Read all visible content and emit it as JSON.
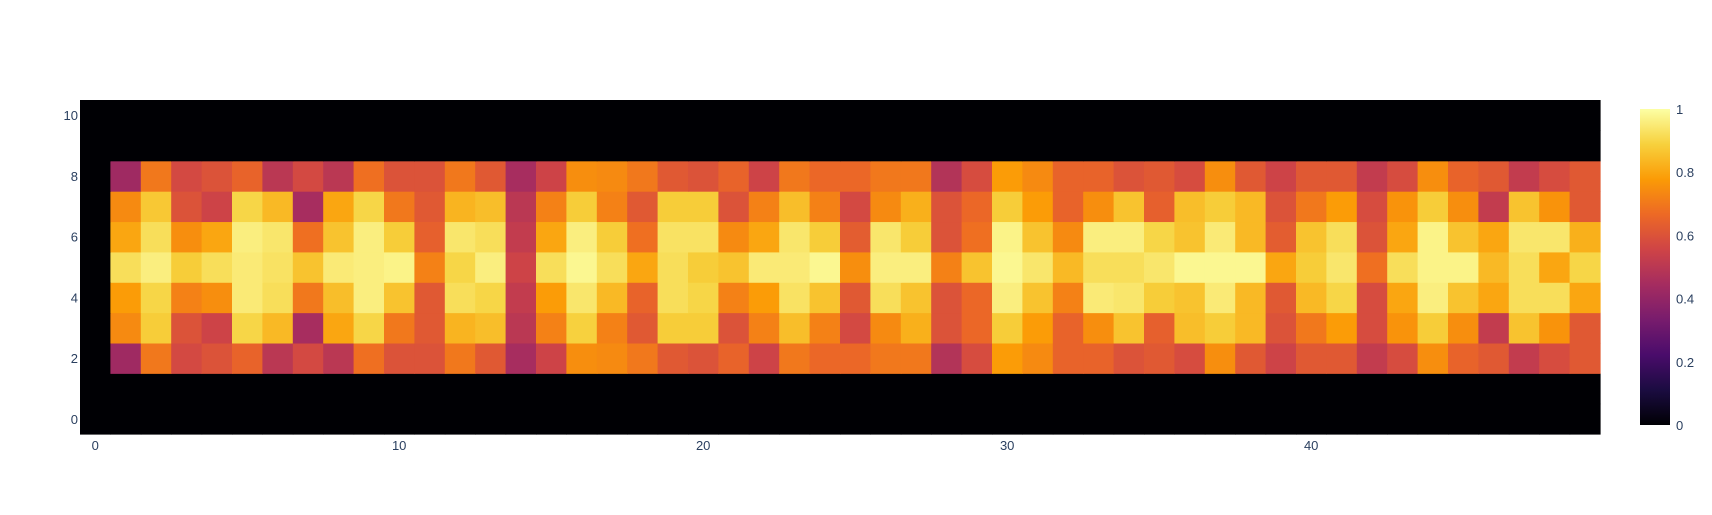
{
  "chart_data": {
    "type": "heatmap",
    "title": "",
    "xlabel": "",
    "ylabel": "",
    "colorscale": "inferno",
    "zmin": 0,
    "zmax": 1,
    "x_range": [
      -0.5,
      49.5
    ],
    "y_range": [
      -0.5,
      10.5
    ],
    "x_ticks": [
      0,
      10,
      20,
      30,
      40
    ],
    "y_ticks": [
      0,
      2,
      4,
      6,
      8,
      10
    ],
    "colorbar_ticks": [
      0,
      0.2,
      0.4,
      0.6,
      0.8,
      1
    ],
    "tick_labels": {
      "x": [
        "0",
        "10",
        "20",
        "30",
        "40"
      ],
      "y": [
        "0",
        "2",
        "4",
        "6",
        "8",
        "10"
      ],
      "colorbar": [
        "0",
        "0.2",
        "0.4",
        "0.6",
        "0.8",
        "1"
      ]
    },
    "z": [
      [
        0,
        0,
        0,
        0,
        0,
        0,
        0,
        0,
        0,
        0,
        0,
        0,
        0,
        0,
        0,
        0,
        0,
        0,
        0,
        0,
        0,
        0,
        0,
        0,
        0,
        0,
        0,
        0,
        0,
        0,
        0,
        0,
        0,
        0,
        0,
        0,
        0,
        0,
        0,
        0,
        0,
        0,
        0,
        0,
        0,
        0,
        0,
        0,
        0,
        0
      ],
      [
        0,
        0,
        0,
        0,
        0,
        0,
        0,
        0,
        0,
        0,
        0,
        0,
        0,
        0,
        0,
        0,
        0,
        0,
        0,
        0,
        0,
        0,
        0,
        0,
        0,
        0,
        0,
        0,
        0,
        0,
        0,
        0,
        0,
        0,
        0,
        0,
        0,
        0,
        0,
        0,
        0,
        0,
        0,
        0,
        0,
        0,
        0,
        0,
        0,
        0
      ],
      [
        0,
        0.43,
        0.7,
        0.57,
        0.6,
        0.65,
        0.5,
        0.57,
        0.5,
        0.68,
        0.6,
        0.6,
        0.7,
        0.62,
        0.45,
        0.55,
        0.75,
        0.74,
        0.7,
        0.62,
        0.6,
        0.65,
        0.55,
        0.7,
        0.66,
        0.66,
        0.7,
        0.7,
        0.48,
        0.58,
        0.78,
        0.74,
        0.65,
        0.65,
        0.6,
        0.62,
        0.58,
        0.75,
        0.62,
        0.55,
        0.62,
        0.62,
        0.52,
        0.58,
        0.75,
        0.65,
        0.62,
        0.52,
        0.58,
        0.62
      ],
      [
        0,
        0.74,
        0.88,
        0.6,
        0.55,
        0.9,
        0.84,
        0.45,
        0.8,
        0.9,
        0.7,
        0.62,
        0.83,
        0.85,
        0.5,
        0.72,
        0.89,
        0.72,
        0.62,
        0.88,
        0.88,
        0.6,
        0.72,
        0.85,
        0.72,
        0.57,
        0.74,
        0.82,
        0.6,
        0.66,
        0.88,
        0.78,
        0.65,
        0.75,
        0.86,
        0.64,
        0.85,
        0.88,
        0.84,
        0.6,
        0.7,
        0.78,
        0.58,
        0.76,
        0.88,
        0.75,
        0.52,
        0.86,
        0.76,
        0.62
      ],
      [
        0,
        0.78,
        0.9,
        0.72,
        0.75,
        0.95,
        0.92,
        0.7,
        0.85,
        0.96,
        0.86,
        0.62,
        0.92,
        0.9,
        0.52,
        0.78,
        0.94,
        0.84,
        0.65,
        0.92,
        0.9,
        0.72,
        0.78,
        0.93,
        0.86,
        0.62,
        0.92,
        0.86,
        0.6,
        0.66,
        0.96,
        0.86,
        0.72,
        0.95,
        0.94,
        0.88,
        0.86,
        0.95,
        0.84,
        0.62,
        0.84,
        0.9,
        0.58,
        0.8,
        0.96,
        0.86,
        0.8,
        0.92,
        0.92,
        0.8
      ],
      [
        0,
        0.92,
        0.96,
        0.88,
        0.92,
        0.95,
        0.93,
        0.86,
        0.95,
        0.96,
        0.97,
        0.72,
        0.9,
        0.96,
        0.55,
        0.92,
        0.98,
        0.92,
        0.8,
        0.92,
        0.88,
        0.86,
        0.95,
        0.95,
        0.98,
        0.75,
        0.96,
        0.96,
        0.72,
        0.86,
        0.98,
        0.94,
        0.84,
        0.92,
        0.92,
        0.94,
        0.98,
        0.98,
        0.98,
        0.8,
        0.88,
        0.94,
        0.68,
        0.92,
        0.97,
        0.97,
        0.84,
        0.92,
        0.8,
        0.9
      ],
      [
        0,
        0.8,
        0.92,
        0.75,
        0.8,
        0.96,
        0.94,
        0.68,
        0.86,
        0.96,
        0.88,
        0.64,
        0.94,
        0.92,
        0.52,
        0.8,
        0.96,
        0.88,
        0.68,
        0.93,
        0.93,
        0.74,
        0.8,
        0.94,
        0.88,
        0.63,
        0.94,
        0.88,
        0.6,
        0.68,
        0.97,
        0.86,
        0.74,
        0.96,
        0.96,
        0.9,
        0.86,
        0.95,
        0.84,
        0.63,
        0.86,
        0.92,
        0.6,
        0.8,
        0.97,
        0.86,
        0.8,
        0.94,
        0.94,
        0.82
      ],
      [
        0,
        0.74,
        0.87,
        0.6,
        0.55,
        0.9,
        0.84,
        0.45,
        0.8,
        0.9,
        0.7,
        0.62,
        0.83,
        0.85,
        0.5,
        0.72,
        0.88,
        0.72,
        0.62,
        0.88,
        0.88,
        0.6,
        0.72,
        0.85,
        0.72,
        0.57,
        0.74,
        0.82,
        0.6,
        0.66,
        0.88,
        0.78,
        0.65,
        0.75,
        0.86,
        0.64,
        0.85,
        0.88,
        0.84,
        0.6,
        0.7,
        0.78,
        0.58,
        0.76,
        0.88,
        0.75,
        0.52,
        0.86,
        0.76,
        0.62
      ],
      [
        0,
        0.43,
        0.7,
        0.57,
        0.6,
        0.65,
        0.5,
        0.57,
        0.5,
        0.68,
        0.6,
        0.6,
        0.7,
        0.62,
        0.45,
        0.55,
        0.75,
        0.74,
        0.7,
        0.62,
        0.6,
        0.65,
        0.55,
        0.7,
        0.66,
        0.66,
        0.7,
        0.7,
        0.48,
        0.58,
        0.78,
        0.74,
        0.65,
        0.65,
        0.6,
        0.62,
        0.58,
        0.75,
        0.62,
        0.55,
        0.62,
        0.62,
        0.52,
        0.58,
        0.75,
        0.65,
        0.62,
        0.52,
        0.58,
        0.62
      ],
      [
        0,
        0,
        0,
        0,
        0,
        0,
        0,
        0,
        0,
        0,
        0,
        0,
        0,
        0,
        0,
        0,
        0,
        0,
        0,
        0,
        0,
        0,
        0,
        0,
        0,
        0,
        0,
        0,
        0,
        0,
        0,
        0,
        0,
        0,
        0,
        0,
        0,
        0,
        0,
        0,
        0,
        0,
        0,
        0,
        0,
        0,
        0,
        0,
        0,
        0
      ],
      [
        0,
        0,
        0,
        0,
        0,
        0,
        0,
        0,
        0,
        0,
        0,
        0,
        0,
        0,
        0,
        0,
        0,
        0,
        0,
        0,
        0,
        0,
        0,
        0,
        0,
        0,
        0,
        0,
        0,
        0,
        0,
        0,
        0,
        0,
        0,
        0,
        0,
        0,
        0,
        0,
        0,
        0,
        0,
        0,
        0,
        0,
        0,
        0,
        0,
        0
      ]
    ]
  }
}
